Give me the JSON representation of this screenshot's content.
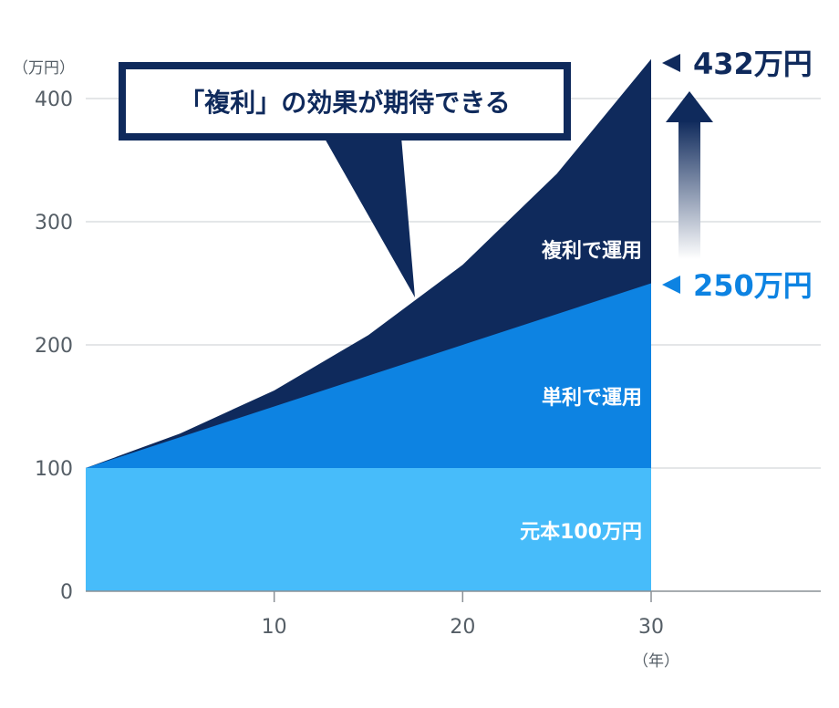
{
  "chart_data": {
    "type": "area",
    "x": [
      0,
      5,
      10,
      15,
      20,
      25,
      30
    ],
    "xticks": [
      "10",
      "20",
      "30"
    ],
    "xtick_values": [
      10,
      20,
      30
    ],
    "xlim": [
      0,
      39
    ],
    "ylim": [
      0,
      400
    ],
    "yticks": [
      "0",
      "100",
      "200",
      "300",
      "400"
    ],
    "ytick_values": [
      0,
      100,
      200,
      300,
      400
    ],
    "y_unit": "（万円）",
    "x_unit": "（年）",
    "grid": true,
    "series": [
      {
        "name": "元本100万円",
        "color": "#47bcfa",
        "values": [
          100,
          100,
          100,
          100,
          100,
          100,
          100
        ]
      },
      {
        "name": "単利で運用",
        "color": "#0d83e2",
        "values": [
          100,
          125,
          150,
          175,
          200,
          225,
          250
        ]
      },
      {
        "name": "複利で運用",
        "color": "#0f2a5c",
        "values": [
          100,
          128,
          163,
          208,
          265,
          339,
          432
        ]
      }
    ],
    "annotations": {
      "callout": "「複利」の効果が期待できる",
      "compound_end_label": "432万円",
      "compound_end_color": "#0f2a5c",
      "simple_end_label": "250万円",
      "simple_end_color": "#0d83e2"
    }
  }
}
